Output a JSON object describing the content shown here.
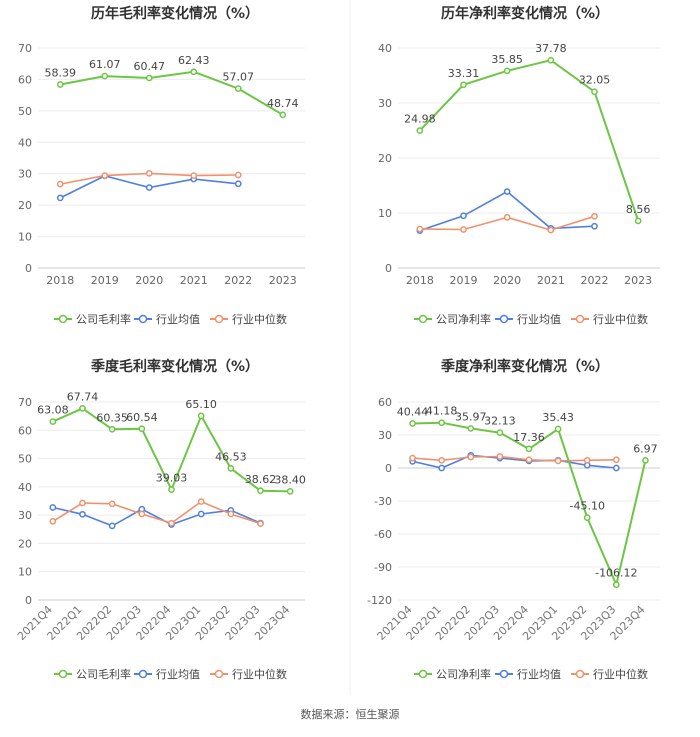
{
  "source_note": "数据来源：恒生聚源",
  "chart_data": [
    {
      "type": "line",
      "title": "历年毛利率变化情况（%）",
      "categories": [
        "2018",
        "2019",
        "2020",
        "2021",
        "2022",
        "2023"
      ],
      "ylim": [
        0,
        70
      ],
      "yticks": [
        0,
        10,
        20,
        30,
        40,
        50,
        60,
        70
      ],
      "grid": true,
      "rotate_labels": false,
      "series": [
        {
          "name": "公司毛利率",
          "color": "#6cc644",
          "values": [
            58.39,
            61.07,
            60.47,
            62.43,
            57.07,
            48.74
          ],
          "labels": [
            "58.39",
            "61.07",
            "60.47",
            "62.43",
            "57.07",
            "48.74"
          ]
        },
        {
          "name": "行业均值",
          "color": "#4f7fe0",
          "values": [
            22.3,
            29.3,
            25.6,
            28.3,
            26.8,
            null
          ]
        },
        {
          "name": "行业中位数",
          "color": "#f0916c",
          "values": [
            26.7,
            29.4,
            30.1,
            29.4,
            29.6,
            null
          ]
        }
      ]
    },
    {
      "type": "line",
      "title": "历年净利率变化情况（%）",
      "categories": [
        "2018",
        "2019",
        "2020",
        "2021",
        "2022",
        "2023"
      ],
      "ylim": [
        0,
        40
      ],
      "yticks": [
        0,
        10,
        20,
        30,
        40
      ],
      "grid": true,
      "rotate_labels": false,
      "series": [
        {
          "name": "公司净利率",
          "color": "#6cc644",
          "values": [
            24.98,
            33.31,
            35.85,
            37.78,
            32.05,
            8.56
          ],
          "labels": [
            "24.98",
            "33.31",
            "35.85",
            "37.78",
            "32.05",
            "8.56"
          ]
        },
        {
          "name": "行业均值",
          "color": "#4f7fe0",
          "values": [
            6.8,
            9.5,
            13.9,
            7.2,
            7.6,
            null
          ]
        },
        {
          "name": "行业中位数",
          "color": "#f0916c",
          "values": [
            7.1,
            7.0,
            9.2,
            6.9,
            9.4,
            null
          ]
        }
      ]
    },
    {
      "type": "line",
      "title": "季度毛利率变化情况（%）",
      "categories": [
        "2021Q4",
        "2022Q1",
        "2022Q2",
        "2022Q3",
        "2022Q4",
        "2023Q1",
        "2023Q2",
        "2023Q3",
        "2023Q4"
      ],
      "ylim": [
        0,
        70
      ],
      "yticks": [
        0,
        10,
        20,
        30,
        40,
        50,
        60,
        70
      ],
      "grid": true,
      "rotate_labels": true,
      "series": [
        {
          "name": "公司毛利率",
          "color": "#6cc644",
          "values": [
            63.08,
            67.74,
            60.35,
            60.54,
            39.03,
            65.1,
            46.53,
            38.62,
            38.4
          ],
          "labels": [
            "63.08",
            "67.74",
            "60.35",
            "60.54",
            "39.03",
            "65.10",
            "46.53",
            "38.62",
            "38.40"
          ]
        },
        {
          "name": "行业均值",
          "color": "#4f7fe0",
          "values": [
            32.7,
            30.3,
            26.2,
            32.1,
            26.7,
            30.4,
            31.7,
            27.2,
            null
          ]
        },
        {
          "name": "行业中位数",
          "color": "#f0916c",
          "values": [
            27.8,
            34.3,
            34.0,
            30.4,
            27.2,
            34.8,
            30.4,
            27.0,
            null
          ]
        }
      ]
    },
    {
      "type": "line",
      "title": "季度净利率变化情况（%）",
      "categories": [
        "2021Q4",
        "2022Q1",
        "2022Q2",
        "2022Q3",
        "2022Q4",
        "2023Q1",
        "2023Q2",
        "2023Q3",
        "2023Q4"
      ],
      "ylim": [
        -120,
        60
      ],
      "yticks": [
        -120,
        -90,
        -60,
        -30,
        0,
        30,
        60
      ],
      "grid": true,
      "rotate_labels": true,
      "series": [
        {
          "name": "公司净利率",
          "color": "#6cc644",
          "values": [
            40.44,
            41.18,
            35.97,
            32.13,
            17.36,
            35.43,
            -45.1,
            -106.12,
            6.97
          ],
          "labels": [
            "40.44",
            "41.18",
            "35.97",
            "32.13",
            "17.36",
            "35.43",
            "-45.10",
            "-106.12",
            "6.97"
          ]
        },
        {
          "name": "行业均值",
          "color": "#4f7fe0",
          "values": [
            6.0,
            0.0,
            11.5,
            9.0,
            6.5,
            7.0,
            2.5,
            0.0,
            null
          ]
        },
        {
          "name": "行业中位数",
          "color": "#f0916c",
          "values": [
            9.0,
            7.0,
            10.0,
            10.5,
            7.5,
            6.5,
            7.0,
            7.5,
            null
          ]
        }
      ]
    }
  ]
}
